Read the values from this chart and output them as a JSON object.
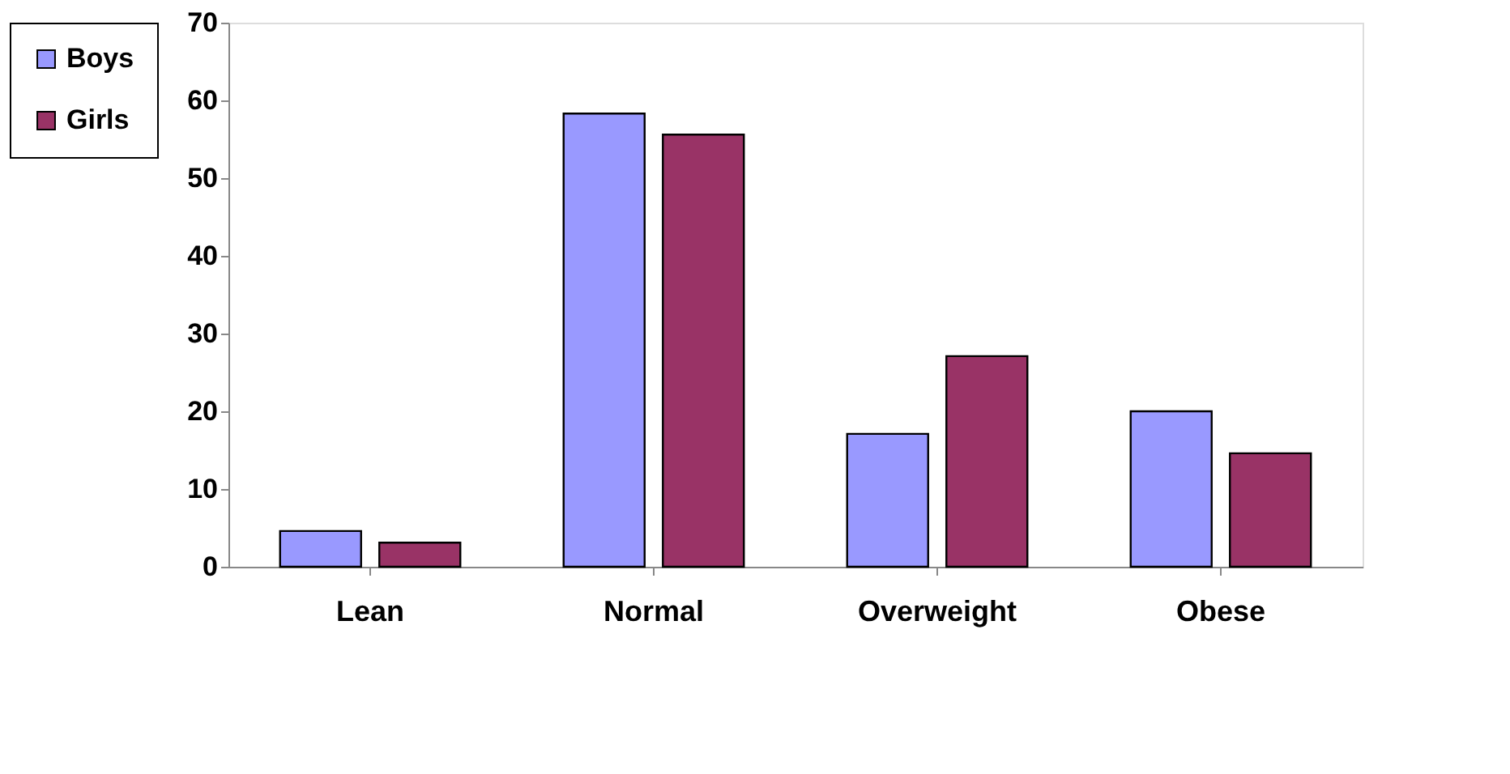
{
  "chart_data": {
    "type": "bar",
    "categories": [
      "Lean",
      "Normal",
      "Overweight",
      "Obese"
    ],
    "series": [
      {
        "name": "Boys",
        "color": "#9999ff",
        "values": [
          4.6,
          58.3,
          17.1,
          20.0
        ]
      },
      {
        "name": "Girls",
        "color": "#993366",
        "values": [
          3.1,
          55.6,
          27.1,
          14.6
        ]
      }
    ],
    "ylim": [
      0,
      70
    ],
    "yticks": [
      0,
      10,
      20,
      30,
      40,
      50,
      60,
      70
    ],
    "grid": false,
    "legend": "left"
  }
}
